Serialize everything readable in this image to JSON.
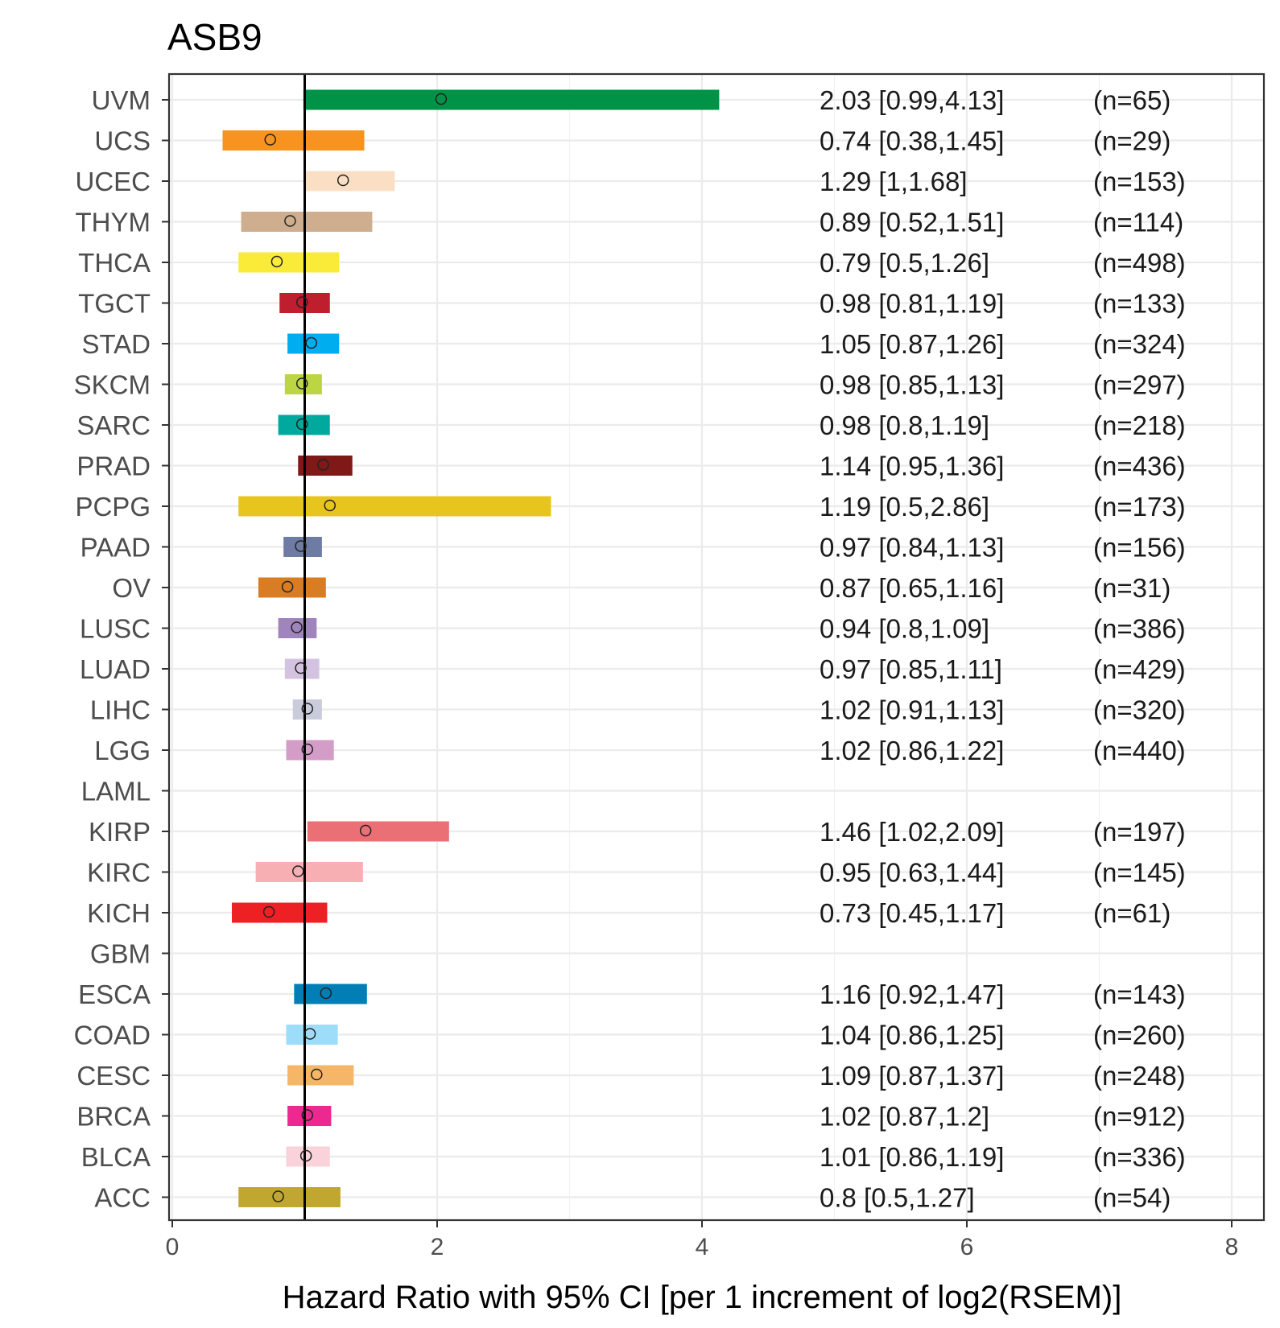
{
  "chart_data": {
    "type": "forest",
    "title": "ASB9",
    "xlabel": "Hazard Ratio with 95% CI [per 1 increment of log2(RSEM)]",
    "ylabel": "",
    "xlim": [
      0,
      8
    ],
    "xticks": [
      "0",
      "2",
      "4",
      "6",
      "8"
    ],
    "reference_line": 1,
    "grid": true,
    "rows": [
      {
        "name": "UVM",
        "hr": 2.03,
        "lo": 0.99,
        "hi": 4.13,
        "label": "2.03 [0.99,4.13]",
        "n": "(n=65)",
        "color": "#009246"
      },
      {
        "name": "UCS",
        "hr": 0.74,
        "lo": 0.38,
        "hi": 1.45,
        "label": "0.74 [0.38,1.45]",
        "n": "(n=29)",
        "color": "#F7931E"
      },
      {
        "name": "UCEC",
        "hr": 1.29,
        "lo": 1.0,
        "hi": 1.68,
        "label": "1.29 [1,1.68]",
        "n": "(n=153)",
        "color": "#FBDFC5"
      },
      {
        "name": "THYM",
        "hr": 0.89,
        "lo": 0.52,
        "hi": 1.51,
        "label": "0.89 [0.52,1.51]",
        "n": "(n=114)",
        "color": "#CFAE8F"
      },
      {
        "name": "THCA",
        "hr": 0.79,
        "lo": 0.5,
        "hi": 1.26,
        "label": "0.79 [0.5,1.26]",
        "n": "(n=498)",
        "color": "#F9EB37"
      },
      {
        "name": "TGCT",
        "hr": 0.98,
        "lo": 0.81,
        "hi": 1.19,
        "label": "0.98 [0.81,1.19]",
        "n": "(n=133)",
        "color": "#BE1E2D"
      },
      {
        "name": "STAD",
        "hr": 1.05,
        "lo": 0.87,
        "hi": 1.26,
        "label": "1.05 [0.87,1.26]",
        "n": "(n=324)",
        "color": "#00AEEF"
      },
      {
        "name": "SKCM",
        "hr": 0.98,
        "lo": 0.85,
        "hi": 1.13,
        "label": "0.98 [0.85,1.13]",
        "n": "(n=297)",
        "color": "#BBD642"
      },
      {
        "name": "SARC",
        "hr": 0.98,
        "lo": 0.8,
        "hi": 1.19,
        "label": "0.98 [0.8,1.19]",
        "n": "(n=218)",
        "color": "#00A99D"
      },
      {
        "name": "PRAD",
        "hr": 1.14,
        "lo": 0.95,
        "hi": 1.36,
        "label": "1.14 [0.95,1.36]",
        "n": "(n=436)",
        "color": "#7E1918"
      },
      {
        "name": "PCPG",
        "hr": 1.19,
        "lo": 0.5,
        "hi": 2.86,
        "label": "1.19 [0.5,2.86]",
        "n": "(n=173)",
        "color": "#E8C51D"
      },
      {
        "name": "PAAD",
        "hr": 0.97,
        "lo": 0.84,
        "hi": 1.13,
        "label": "0.97 [0.84,1.13]",
        "n": "(n=156)",
        "color": "#6E7BA2"
      },
      {
        "name": "OV",
        "hr": 0.87,
        "lo": 0.65,
        "hi": 1.16,
        "label": "0.87 [0.65,1.16]",
        "n": "(n=31)",
        "color": "#D97D25"
      },
      {
        "name": "LUSC",
        "hr": 0.94,
        "lo": 0.8,
        "hi": 1.09,
        "label": "0.94 [0.8,1.09]",
        "n": "(n=386)",
        "color": "#A084BD"
      },
      {
        "name": "LUAD",
        "hr": 0.97,
        "lo": 0.85,
        "hi": 1.11,
        "label": "0.97 [0.85,1.11]",
        "n": "(n=429)",
        "color": "#D3C3E0"
      },
      {
        "name": "LIHC",
        "hr": 1.02,
        "lo": 0.91,
        "hi": 1.13,
        "label": "1.02 [0.91,1.13]",
        "n": "(n=320)",
        "color": "#CACCDB"
      },
      {
        "name": "LGG",
        "hr": 1.02,
        "lo": 0.86,
        "hi": 1.22,
        "label": "1.02 [0.86,1.22]",
        "n": "(n=440)",
        "color": "#D49DC7"
      },
      {
        "name": "LAML",
        "hr": null,
        "lo": null,
        "hi": null,
        "label": "",
        "n": "",
        "color": "#754C29"
      },
      {
        "name": "KIRP",
        "hr": 1.46,
        "lo": 1.02,
        "hi": 2.09,
        "label": "1.46 [1.02,2.09]",
        "n": "(n=197)",
        "color": "#EA7075"
      },
      {
        "name": "KIRC",
        "hr": 0.95,
        "lo": 0.63,
        "hi": 1.44,
        "label": "0.95 [0.63,1.44]",
        "n": "(n=145)",
        "color": "#F8AFB3"
      },
      {
        "name": "KICH",
        "hr": 0.73,
        "lo": 0.45,
        "hi": 1.17,
        "label": "0.73 [0.45,1.17]",
        "n": "(n=61)",
        "color": "#ED2024"
      },
      {
        "name": "GBM",
        "hr": null,
        "lo": null,
        "hi": null,
        "label": "",
        "n": "",
        "color": "#B2509E"
      },
      {
        "name": "ESCA",
        "hr": 1.16,
        "lo": 0.92,
        "hi": 1.47,
        "label": "1.16 [0.92,1.47]",
        "n": "(n=143)",
        "color": "#007EB5"
      },
      {
        "name": "COAD",
        "hr": 1.04,
        "lo": 0.86,
        "hi": 1.25,
        "label": "1.04 [0.86,1.25]",
        "n": "(n=260)",
        "color": "#9EDDF9"
      },
      {
        "name": "CESC",
        "hr": 1.09,
        "lo": 0.87,
        "hi": 1.37,
        "label": "1.09 [0.87,1.37]",
        "n": "(n=248)",
        "color": "#F6B667"
      },
      {
        "name": "BRCA",
        "hr": 1.02,
        "lo": 0.87,
        "hi": 1.2,
        "label": "1.02 [0.87,1.2]",
        "n": "(n=912)",
        "color": "#ED2891"
      },
      {
        "name": "BLCA",
        "hr": 1.01,
        "lo": 0.86,
        "hi": 1.19,
        "label": "1.01 [0.86,1.19]",
        "n": "(n=336)",
        "color": "#FAD2D9"
      },
      {
        "name": "ACC",
        "hr": 0.8,
        "lo": 0.5,
        "hi": 1.27,
        "label": "0.8 [0.5,1.27]",
        "n": "(n=54)",
        "color": "#C1A72F"
      }
    ]
  }
}
